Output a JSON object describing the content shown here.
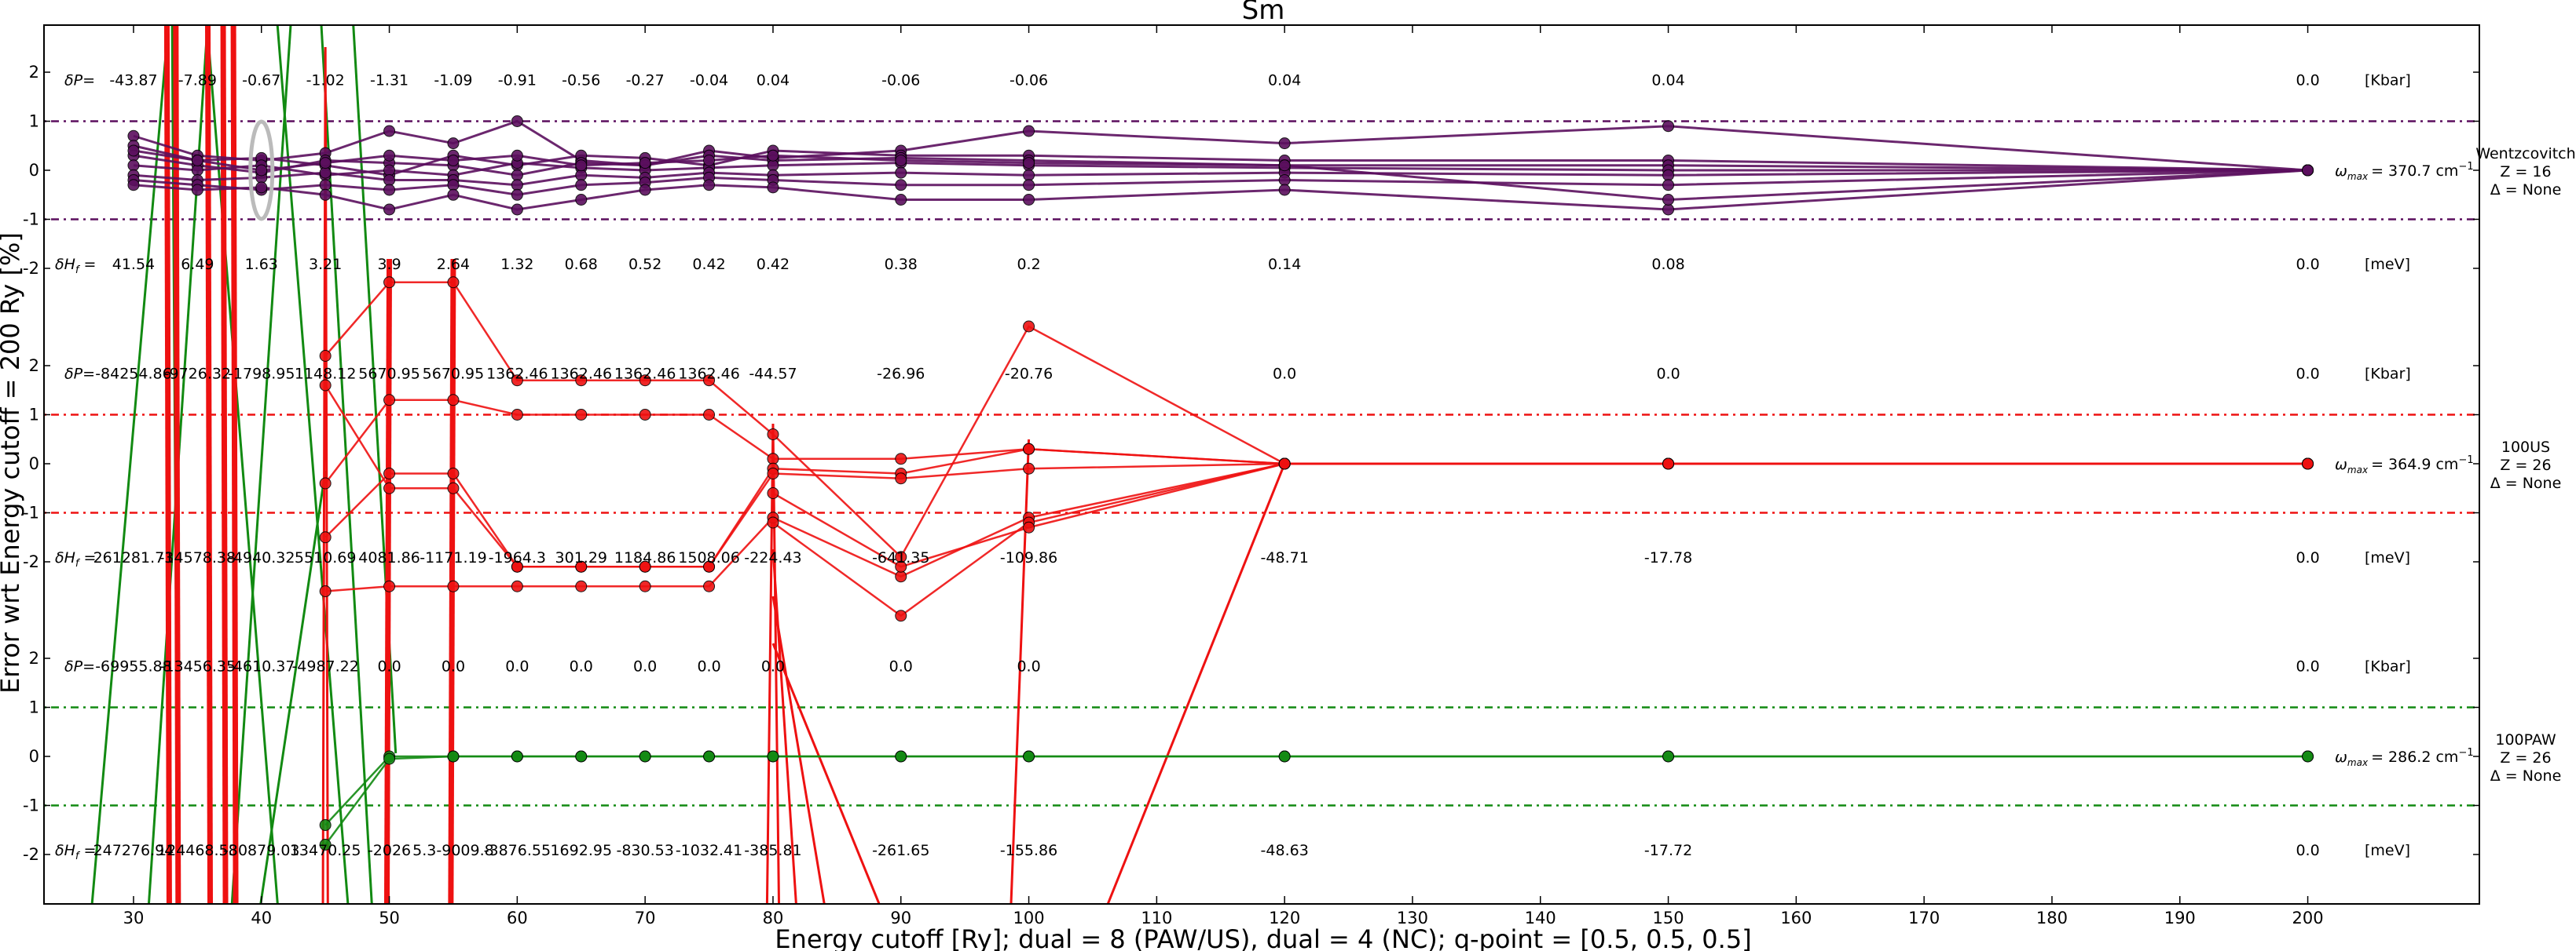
{
  "chart_data": {
    "type": "line",
    "title": "Sm",
    "xlabel": "Energy cutoff [Ry]; dual = 8 (PAW/US), dual = 4 (NC); q-point = [0.5, 0.5, 0.5]",
    "ylabel": "Error wrt Energy cutoff = 200 Ry [%]",
    "xlim": [
      23,
      213
    ],
    "x_ticks": [
      30,
      40,
      50,
      60,
      70,
      80,
      90,
      100,
      110,
      120,
      130,
      140,
      150,
      160,
      170,
      180,
      190,
      200
    ],
    "y_tick_labels": [
      "2",
      "1",
      "0",
      "-1",
      "-2"
    ],
    "grid": false,
    "units": {
      "dP": "[Kbar]",
      "dHf": "[meV]"
    },
    "dP_label": "δP=",
    "dHf_label": "δH",
    "dHf_subscript": "f",
    "omega_label": "ω",
    "omega_subscript": "max",
    "panels": [
      {
        "name": "Wentzcovitch",
        "z_label": "Z = 16",
        "delta_label": "Δ = None",
        "omega_text": "= 370.7 cm",
        "color": "#5b0f5e",
        "dP": [
          {
            "x": 30,
            "t": "-43.87"
          },
          {
            "x": 35,
            "t": "-7.89"
          },
          {
            "x": 40,
            "t": "-0.67"
          },
          {
            "x": 45,
            "t": "-1.02"
          },
          {
            "x": 50,
            "t": "-1.31"
          },
          {
            "x": 55,
            "t": "-1.09"
          },
          {
            "x": 60,
            "t": "-0.91"
          },
          {
            "x": 65,
            "t": "-0.56"
          },
          {
            "x": 70,
            "t": "-0.27"
          },
          {
            "x": 75,
            "t": "-0.04"
          },
          {
            "x": 80,
            "t": "0.04"
          },
          {
            "x": 90,
            "t": "-0.06"
          },
          {
            "x": 100,
            "t": "-0.06"
          },
          {
            "x": 120,
            "t": "0.04"
          },
          {
            "x": 150,
            "t": "0.04"
          },
          {
            "x": 200,
            "t": "0.0"
          }
        ],
        "dHf": [
          {
            "x": 30,
            "t": "41.54"
          },
          {
            "x": 35,
            "t": "6.49"
          },
          {
            "x": 40,
            "t": "1.63"
          },
          {
            "x": 45,
            "t": "3.21"
          },
          {
            "x": 50,
            "t": "3.9"
          },
          {
            "x": 55,
            "t": "2.64"
          },
          {
            "x": 60,
            "t": "1.32"
          },
          {
            "x": 65,
            "t": "0.68"
          },
          {
            "x": 70,
            "t": "0.52"
          },
          {
            "x": 75,
            "t": "0.42"
          },
          {
            "x": 80,
            "t": "0.42"
          },
          {
            "x": 90,
            "t": "0.38"
          },
          {
            "x": 100,
            "t": "0.2"
          },
          {
            "x": 120,
            "t": "0.14"
          },
          {
            "x": 150,
            "t": "0.08"
          },
          {
            "x": 200,
            "t": "0.0"
          }
        ],
        "series": [
          {
            "x": [
              30,
              35,
              40,
              45,
              50,
              55,
              60,
              65,
              70,
              75,
              80,
              90,
              100,
              120,
              150,
              200
            ],
            "y": [
              0.7,
              0.3,
              0.2,
              0.35,
              0.8,
              0.55,
              1.0,
              0.2,
              0.1,
              0.4,
              0.25,
              0.4,
              0.8,
              0.55,
              0.9,
              0.0
            ]
          },
          {
            "x": [
              30,
              35,
              40,
              45,
              50,
              55,
              60,
              65,
              70,
              75,
              80,
              90,
              100,
              120,
              150,
              200
            ],
            "y": [
              0.5,
              0.2,
              0.25,
              0.1,
              -0.1,
              0.3,
              0.1,
              0.3,
              0.25,
              0.1,
              0.4,
              0.3,
              0.3,
              0.2,
              0.2,
              0.0
            ]
          },
          {
            "x": [
              30,
              35,
              40,
              45,
              50,
              55,
              60,
              65,
              70,
              75,
              80,
              90,
              100,
              120,
              150,
              200
            ],
            "y": [
              0.3,
              0.1,
              -0.05,
              0.2,
              0.15,
              0.1,
              -0.1,
              0.15,
              0.1,
              0.3,
              0.2,
              0.25,
              0.2,
              0.1,
              0.1,
              0.0
            ]
          },
          {
            "x": [
              30,
              35,
              40,
              45,
              50,
              55,
              60,
              65,
              70,
              75,
              80,
              90,
              100,
              120,
              150,
              200
            ],
            "y": [
              0.1,
              0.0,
              0.1,
              -0.1,
              0.0,
              -0.1,
              0.15,
              0.05,
              0.0,
              0.05,
              0.1,
              0.15,
              0.1,
              0.05,
              0.0,
              0.0
            ]
          },
          {
            "x": [
              30,
              35,
              40,
              45,
              50,
              55,
              60,
              65,
              70,
              75,
              80,
              90,
              100,
              120,
              150,
              200
            ],
            "y": [
              -0.1,
              -0.2,
              -0.15,
              -0.05,
              -0.2,
              -0.2,
              -0.3,
              -0.1,
              -0.15,
              -0.05,
              -0.1,
              -0.05,
              -0.1,
              -0.05,
              -0.1,
              0.0
            ]
          },
          {
            "x": [
              30,
              35,
              40,
              45,
              50,
              55,
              60,
              65,
              70,
              75,
              80,
              90,
              100,
              120,
              150,
              200
            ],
            "y": [
              -0.2,
              -0.3,
              -0.4,
              -0.3,
              -0.4,
              -0.3,
              -0.5,
              -0.3,
              -0.25,
              -0.15,
              -0.2,
              -0.3,
              -0.3,
              -0.2,
              -0.3,
              0.0
            ]
          },
          {
            "x": [
              30,
              35,
              40,
              45,
              50,
              55,
              60,
              65,
              70,
              75,
              80,
              90,
              100,
              120,
              150,
              200
            ],
            "y": [
              -0.3,
              -0.4,
              -0.35,
              -0.5,
              -0.8,
              -0.5,
              -0.8,
              -0.6,
              -0.4,
              -0.3,
              -0.35,
              -0.6,
              -0.6,
              -0.4,
              -0.8,
              0.0
            ]
          },
          {
            "x": [
              30,
              35,
              40,
              45,
              50,
              55,
              60,
              65,
              70,
              75,
              80,
              90,
              100,
              120,
              150,
              200
            ],
            "y": [
              0.4,
              0.2,
              0.0,
              0.15,
              0.3,
              0.2,
              0.3,
              0.1,
              0.15,
              0.2,
              0.3,
              0.2,
              0.15,
              0.1,
              -0.6,
              0.0
            ]
          }
        ]
      },
      {
        "name": "100US",
        "z_label": "Z = 26",
        "delta_label": "Δ = None",
        "omega_text": "= 364.9 cm",
        "color": "#ee1111",
        "dP": [
          {
            "x": 30,
            "t": "-84254.86"
          },
          {
            "x": 35,
            "t": "-9726.32"
          },
          {
            "x": 40,
            "t": "-1798.95"
          },
          {
            "x": 45,
            "t": "1148.12"
          },
          {
            "x": 50,
            "t": "5670.95"
          },
          {
            "x": 55,
            "t": "5670.95"
          },
          {
            "x": 60,
            "t": "1362.46"
          },
          {
            "x": 65,
            "t": "1362.46"
          },
          {
            "x": 70,
            "t": "1362.46"
          },
          {
            "x": 75,
            "t": "1362.46"
          },
          {
            "x": 80,
            "t": "-44.57"
          },
          {
            "x": 90,
            "t": "-26.96"
          },
          {
            "x": 100,
            "t": "-20.76"
          },
          {
            "x": 120,
            "t": "0.0"
          },
          {
            "x": 150,
            "t": "0.0"
          },
          {
            "x": 200,
            "t": "0.0"
          }
        ],
        "dHf": [
          {
            "x": 30,
            "t": "261281.73"
          },
          {
            "x": 35,
            "t": "-14578.38"
          },
          {
            "x": 40,
            "t": "-4940.32"
          },
          {
            "x": 45,
            "t": "5510.69"
          },
          {
            "x": 50,
            "t": "4081.86"
          },
          {
            "x": 55,
            "t": "-1171.19"
          },
          {
            "x": 60,
            "t": "-1964.3"
          },
          {
            "x": 65,
            "t": "301.29"
          },
          {
            "x": 70,
            "t": "1184.86"
          },
          {
            "x": 75,
            "t": "1508.06"
          },
          {
            "x": 80,
            "t": "-224.43"
          },
          {
            "x": 90,
            "t": "-641.35"
          },
          {
            "x": 100,
            "t": "-109.86"
          },
          {
            "x": 120,
            "t": "-48.71"
          },
          {
            "x": 150,
            "t": "-17.78"
          },
          {
            "x": 200,
            "t": "0.0"
          }
        ],
        "series": [
          {
            "x": [
              45,
              50,
              55,
              60,
              65,
              70,
              75,
              80,
              90,
              100,
              120,
              150,
              200
            ],
            "y": [
              2.2,
              3.7,
              3.7,
              1.7,
              1.7,
              1.7,
              1.7,
              0.6,
              -1.9,
              2.8,
              0.0,
              0.0,
              0.0
            ]
          },
          {
            "x": [
              45,
              50,
              55,
              60,
              65,
              70,
              75,
              80,
              90,
              100,
              120,
              150,
              200
            ],
            "y": [
              -0.4,
              1.3,
              1.3,
              1.0,
              1.0,
              1.0,
              1.0,
              0.1,
              0.1,
              0.3,
              0.0,
              0.0,
              0.0
            ]
          },
          {
            "x": [
              45,
              50,
              55,
              60,
              65,
              70,
              75,
              80,
              90,
              100,
              120,
              150,
              200
            ],
            "y": [
              -1.5,
              -0.2,
              -0.2,
              -2.1,
              -2.1,
              -2.1,
              -2.1,
              -0.1,
              -0.2,
              0.3,
              0.0,
              0.0,
              0.0
            ]
          },
          {
            "x": [
              45,
              50,
              55,
              60,
              65,
              70,
              75,
              80,
              90,
              100,
              120,
              150,
              200
            ],
            "y": [
              1.6,
              -0.5,
              -0.5,
              -2.1,
              -2.1,
              -2.1,
              -2.1,
              -0.2,
              -0.3,
              -0.1,
              0.0,
              0.0,
              0.0
            ]
          },
          {
            "x": [
              45,
              50,
              55,
              60,
              65,
              70,
              75,
              80,
              90,
              100,
              120,
              150,
              200
            ],
            "y": [
              -2.6,
              -2.5,
              -2.5,
              -2.5,
              -2.5,
              -2.5,
              -2.5,
              -1.1,
              -2.3,
              -1.1,
              0.0,
              0.0,
              0.0
            ]
          },
          {
            "x": [
              80,
              90,
              100,
              120
            ],
            "y": [
              -1.2,
              -3.1,
              -1.2,
              0.0
            ]
          },
          {
            "x": [
              80,
              90,
              100,
              120
            ],
            "y": [
              -0.6,
              -2.1,
              -1.3,
              0.0
            ]
          }
        ]
      },
      {
        "name": "100PAW",
        "z_label": "Z = 26",
        "delta_label": "Δ = None",
        "omega_text": "= 286.2 cm",
        "color": "#128a12",
        "dP": [
          {
            "x": 30,
            "t": "-69955.88"
          },
          {
            "x": 35,
            "t": "-13456.35"
          },
          {
            "x": 40,
            "t": "-4610.37"
          },
          {
            "x": 45,
            "t": "-4987.22"
          },
          {
            "x": 50,
            "t": "0.0"
          },
          {
            "x": 55,
            "t": "0.0"
          },
          {
            "x": 60,
            "t": "0.0"
          },
          {
            "x": 65,
            "t": "0.0"
          },
          {
            "x": 70,
            "t": "0.0"
          },
          {
            "x": 75,
            "t": "0.0"
          },
          {
            "x": 80,
            "t": "0.0"
          },
          {
            "x": 90,
            "t": "0.0"
          },
          {
            "x": 100,
            "t": "0.0"
          },
          {
            "x": 200,
            "t": "0.0"
          }
        ],
        "dHf": [
          {
            "x": 30,
            "t": "247276.94"
          },
          {
            "x": 35,
            "t": "124468.58"
          },
          {
            "x": 40,
            "t": "-30879.03"
          },
          {
            "x": 45,
            "t": "13470.25"
          },
          {
            "x": 50,
            "t": "-2026"
          },
          {
            "x": 55,
            "t": "5.3-9009.8"
          },
          {
            "x": 60,
            "t": "-3876.55"
          },
          {
            "x": 65,
            "t": "1692.95"
          },
          {
            "x": 70,
            "t": "-830.53"
          },
          {
            "x": 75,
            "t": "-1032.41"
          },
          {
            "x": 80,
            "t": "-385.81"
          },
          {
            "x": 90,
            "t": "-261.65"
          },
          {
            "x": 100,
            "t": "-155.86"
          },
          {
            "x": 120,
            "t": "-48.63"
          },
          {
            "x": 150,
            "t": "-17.72"
          },
          {
            "x": 200,
            "t": "0.0"
          }
        ],
        "series": [
          {
            "x": [
              45,
              50,
              55,
              60,
              65,
              70,
              75,
              80,
              90,
              100,
              120,
              150,
              200
            ],
            "y": [
              -1.4,
              0.0,
              0.0,
              0.0,
              0.0,
              0.0,
              0.0,
              0.0,
              0.0,
              0.0,
              0.0,
              0.0,
              0.0
            ]
          },
          {
            "x": [
              45,
              50,
              55,
              60,
              65,
              70,
              75,
              80,
              90,
              100,
              120,
              150,
              200
            ],
            "y": [
              -1.8,
              -0.05,
              0.0,
              0.0,
              0.0,
              0.0,
              0.0,
              0.0,
              0.0,
              0.0,
              0.0,
              0.0,
              0.0
            ]
          }
        ]
      }
    ]
  }
}
